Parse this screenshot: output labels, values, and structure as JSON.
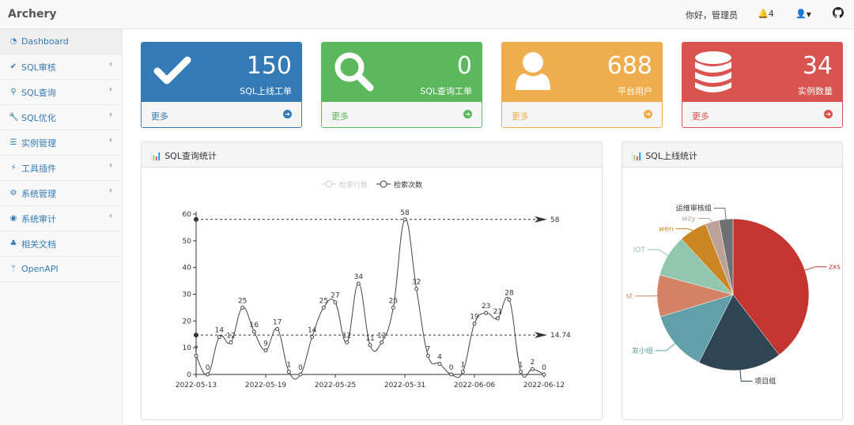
{
  "header": {
    "brand": "Archery",
    "greeting": "你好，管理员",
    "notifications": "4",
    "icons": [
      "bell-icon",
      "user-icon",
      "caret-down-icon",
      "github-icon"
    ]
  },
  "sidebar": {
    "items": [
      {
        "label": "Dashboard",
        "icon": "dashboard-icon",
        "glyph": "◔",
        "active": true,
        "chevron": false
      },
      {
        "label": "SQL审核",
        "icon": "check-icon",
        "glyph": "✔",
        "chevron": true
      },
      {
        "label": "SQL查询",
        "icon": "search-icon",
        "glyph": "⚲",
        "chevron": true
      },
      {
        "label": "SQL优化",
        "icon": "wrench-icon",
        "glyph": "🔧",
        "chevron": true
      },
      {
        "label": "实例管理",
        "icon": "database-icon",
        "glyph": "☰",
        "chevron": true
      },
      {
        "label": "工具插件",
        "icon": "plug-icon",
        "glyph": "⚡",
        "chevron": true
      },
      {
        "label": "系统管理",
        "icon": "cogs-icon",
        "glyph": "⚙",
        "chevron": true
      },
      {
        "label": "系统审计",
        "icon": "eye-icon",
        "glyph": "◉",
        "chevron": true
      },
      {
        "label": "相关文档",
        "icon": "sitemap-icon",
        "glyph": "♣",
        "chevron": false
      },
      {
        "label": "OpenAPI",
        "icon": "code-fork-icon",
        "glyph": "ᛘ",
        "chevron": false
      }
    ]
  },
  "cards": [
    {
      "value": "150",
      "label": "SQL上线工单",
      "more": "更多",
      "icon": "check-icon",
      "color": "#337ab7"
    },
    {
      "value": "0",
      "label": "SQL查询工单",
      "more": "更多",
      "icon": "search-icon",
      "color": "#5cb85c"
    },
    {
      "value": "688",
      "label": "平台用户",
      "more": "更多",
      "icon": "user-icon",
      "color": "#f0ad4e"
    },
    {
      "value": "34",
      "label": "实例数量",
      "more": "更多",
      "icon": "database-icon",
      "color": "#d9534f"
    }
  ],
  "panels": {
    "query": "SQL查询统计",
    "release": "SQL上线统计"
  },
  "chart_data": [
    {
      "type": "line",
      "title": "",
      "legend": [
        {
          "name": "检索行数",
          "hidden": true
        },
        {
          "name": "检索次数"
        }
      ],
      "legend_placement": "top-center",
      "x": [
        "2022-05-13",
        "2022-05-14",
        "2022-05-15",
        "2022-05-16",
        "2022-05-17",
        "2022-05-18",
        "2022-05-19",
        "2022-05-20",
        "2022-05-21",
        "2022-05-22",
        "2022-05-23",
        "2022-05-24",
        "2022-05-25",
        "2022-05-26",
        "2022-05-27",
        "2022-05-28",
        "2022-05-29",
        "2022-05-30",
        "2022-05-31",
        "2022-06-01",
        "2022-06-02",
        "2022-06-03",
        "2022-06-04",
        "2022-06-05",
        "2022-06-06",
        "2022-06-07",
        "2022-06-08",
        "2022-06-09",
        "2022-06-10",
        "2022-06-11",
        "2022-06-12"
      ],
      "xticks": [
        "2022-05-13",
        "2022-05-19",
        "2022-05-25",
        "2022-05-31",
        "2022-06-06",
        "2022-06-12"
      ],
      "series": [
        {
          "name": "检索次数",
          "values": [
            7,
            0,
            14,
            12,
            25,
            16,
            9,
            17,
            1,
            0,
            14,
            25,
            27,
            12,
            34,
            11,
            12,
            25,
            58,
            32,
            7,
            4,
            0,
            1,
            19,
            23,
            21,
            28,
            1,
            2,
            0
          ]
        }
      ],
      "ylim": [
        0,
        60
      ],
      "yticks": [
        0,
        10,
        20,
        30,
        40,
        50,
        60
      ],
      "markLines": [
        {
          "label": "58",
          "value": 58
        },
        {
          "label": "14.74",
          "value": 14.74
        }
      ],
      "smooth": true,
      "grid": false
    },
    {
      "type": "pie",
      "title": "",
      "slices": [
        {
          "name": "zxs",
          "value": 40,
          "color": "#c23531"
        },
        {
          "name": "项目组",
          "value": 18,
          "color": "#2f4554"
        },
        {
          "name": "发小组",
          "value": 13,
          "color": "#61a0a8"
        },
        {
          "name": "st",
          "value": 9,
          "color": "#d48265"
        },
        {
          "name": "IOT",
          "value": 9,
          "color": "#91c7ae"
        },
        {
          "name": "wen",
          "value": 6,
          "color": "#ca8622"
        },
        {
          "name": "wzy",
          "value": 3,
          "color": "#bda29a"
        },
        {
          "name": "运维审核组",
          "value": 3,
          "color": "#6e7074"
        }
      ]
    }
  ]
}
